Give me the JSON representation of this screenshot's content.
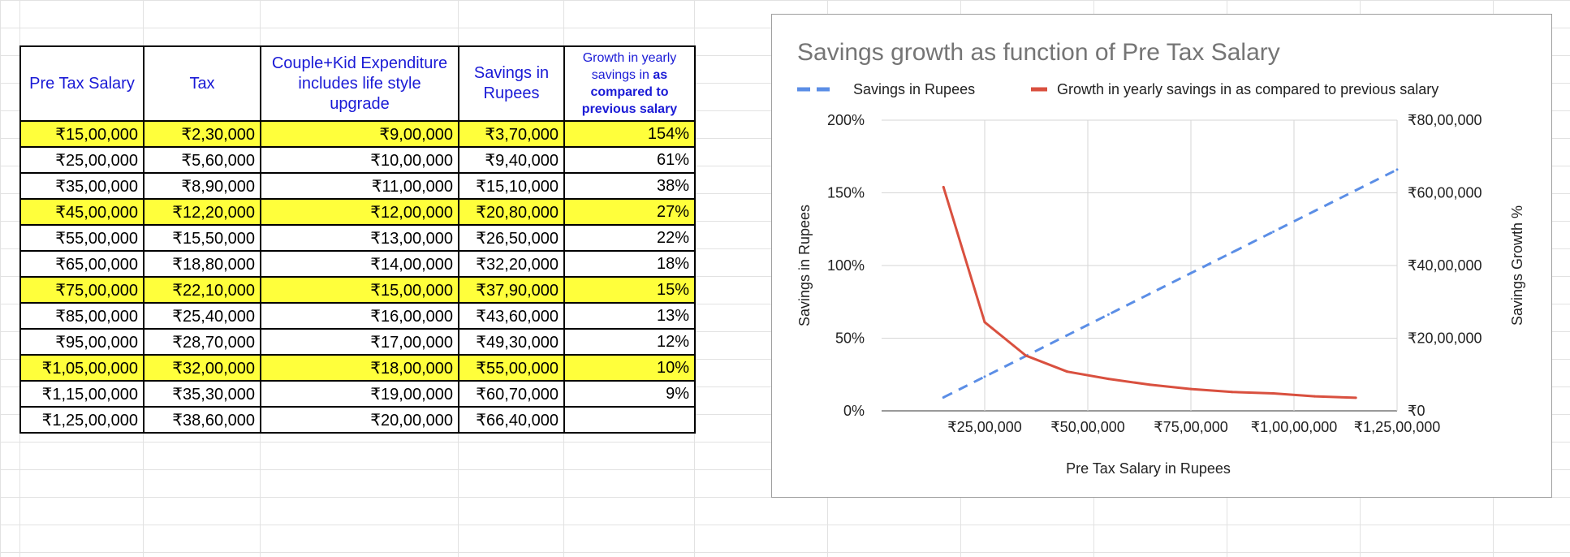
{
  "table": {
    "headers": {
      "salary": "Pre Tax Salary",
      "tax": "Tax",
      "expenditure": "Couple+Kid Expenditure includes life style upgrade",
      "savings": "Savings in Rupees",
      "growth_plain": "Growth in yearly savings in",
      "growth_bold": "as compared to previous salary"
    },
    "highlight_color": "#ffff3b",
    "header_text_color": "#1a1ad6",
    "rows": [
      {
        "salary": "₹15,00,000",
        "tax": "₹2,30,000",
        "expenditure": "₹9,00,000",
        "savings": "₹3,70,000",
        "growth": "154%",
        "highlighted": true
      },
      {
        "salary": "₹25,00,000",
        "tax": "₹5,60,000",
        "expenditure": "₹10,00,000",
        "savings": "₹9,40,000",
        "growth": "61%",
        "highlighted": false
      },
      {
        "salary": "₹35,00,000",
        "tax": "₹8,90,000",
        "expenditure": "₹11,00,000",
        "savings": "₹15,10,000",
        "growth": "38%",
        "highlighted": false
      },
      {
        "salary": "₹45,00,000",
        "tax": "₹12,20,000",
        "expenditure": "₹12,00,000",
        "savings": "₹20,80,000",
        "growth": "27%",
        "highlighted": true
      },
      {
        "salary": "₹55,00,000",
        "tax": "₹15,50,000",
        "expenditure": "₹13,00,000",
        "savings": "₹26,50,000",
        "growth": "22%",
        "highlighted": false
      },
      {
        "salary": "₹65,00,000",
        "tax": "₹18,80,000",
        "expenditure": "₹14,00,000",
        "savings": "₹32,20,000",
        "growth": "18%",
        "highlighted": false
      },
      {
        "salary": "₹75,00,000",
        "tax": "₹22,10,000",
        "expenditure": "₹15,00,000",
        "savings": "₹37,90,000",
        "growth": "15%",
        "highlighted": true
      },
      {
        "salary": "₹85,00,000",
        "tax": "₹25,40,000",
        "expenditure": "₹16,00,000",
        "savings": "₹43,60,000",
        "growth": "13%",
        "highlighted": false
      },
      {
        "salary": "₹95,00,000",
        "tax": "₹28,70,000",
        "expenditure": "₹17,00,000",
        "savings": "₹49,30,000",
        "growth": "12%",
        "highlighted": false
      },
      {
        "salary": "₹1,05,00,000",
        "tax": "₹32,00,000",
        "expenditure": "₹18,00,000",
        "savings": "₹55,00,000",
        "growth": "10%",
        "highlighted": true
      },
      {
        "salary": "₹1,15,00,000",
        "tax": "₹35,30,000",
        "expenditure": "₹19,00,000",
        "savings": "₹60,70,000",
        "growth": "9%",
        "highlighted": false
      },
      {
        "salary": "₹1,25,00,000",
        "tax": "₹38,60,000",
        "expenditure": "₹20,00,000",
        "savings": "₹66,40,000",
        "growth": "",
        "highlighted": false
      }
    ]
  },
  "chart_data": {
    "type": "line",
    "title": "Savings growth as function of Pre Tax Salary",
    "xlabel": "Pre Tax Salary in Rupees",
    "ylabel_left": "Savings in Rupees",
    "ylabel_right": "Savings Growth %",
    "xlim": [
      0,
      12500000
    ],
    "x_ticks": [
      2500000,
      5000000,
      7500000,
      10000000,
      12500000
    ],
    "x_tick_labels": [
      "₹25,00,000",
      "₹50,00,000",
      "₹75,00,000",
      "₹1,00,00,000",
      "₹1,25,00,000"
    ],
    "left_axis_ticks": [
      "0%",
      "50%",
      "100%",
      "150%",
      "200%"
    ],
    "left_axis_values": [
      0,
      50,
      100,
      150,
      200
    ],
    "right_axis_ticks": [
      "₹0",
      "₹20,00,000",
      "₹40,00,000",
      "₹60,00,000",
      "₹80,00,000"
    ],
    "right_axis_values": [
      0,
      2000000,
      4000000,
      6000000,
      8000000
    ],
    "grid": true,
    "legend_position": "top",
    "series": [
      {
        "name": "Savings in Rupees",
        "color": "#5b8ee6",
        "style": "dashed",
        "axis": "right",
        "x": [
          1500000,
          2500000,
          3500000,
          4500000,
          5500000,
          6500000,
          7500000,
          8500000,
          9500000,
          10500000,
          11500000,
          12500000
        ],
        "values": [
          370000,
          940000,
          1510000,
          2080000,
          2650000,
          3220000,
          3790000,
          4360000,
          4930000,
          5500000,
          6070000,
          6640000
        ]
      },
      {
        "name": "Growth in yearly savings in as compared to previous salary",
        "color": "#d9503f",
        "style": "solid",
        "axis": "left",
        "x": [
          1500000,
          2500000,
          3500000,
          4500000,
          5500000,
          6500000,
          7500000,
          8500000,
          9500000,
          10500000,
          11500000
        ],
        "values": [
          154,
          61,
          38,
          27,
          22,
          18,
          15,
          13,
          12,
          10,
          9
        ]
      }
    ]
  }
}
